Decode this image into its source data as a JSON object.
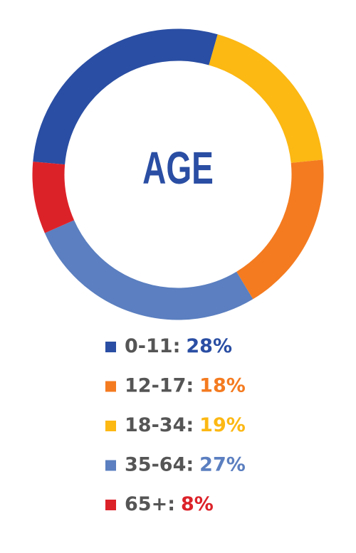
{
  "chart_data": {
    "type": "donut",
    "title": "AGE",
    "categories": [
      "0-11:",
      "12-17:",
      "18-34:",
      "35-64:",
      "65+:"
    ],
    "values": [
      28,
      18,
      19,
      27,
      8
    ],
    "value_labels": [
      "28%",
      "18%",
      "19%",
      "27%",
      "8%"
    ],
    "colors": [
      "#2a4ea3",
      "#f47b20",
      "#fcb813",
      "#5b7fc0",
      "#dc2229"
    ]
  }
}
